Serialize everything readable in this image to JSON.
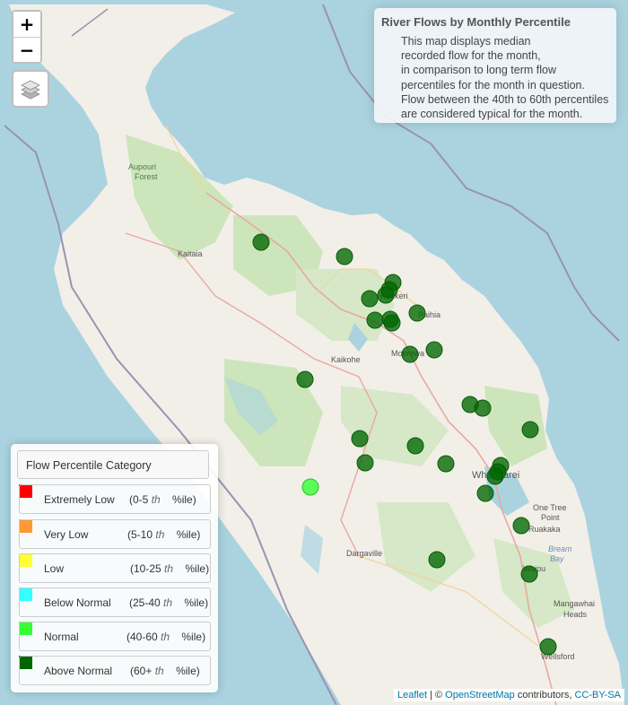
{
  "zoom": {
    "in_label": "+",
    "out_label": "−"
  },
  "layers_button": {
    "icon": "layers-icon"
  },
  "info": {
    "title": "River Flows by Monthly Percentile",
    "description_lines": [
      "This map displays median",
      "recorded flow for the month,",
      "in comparison to long term flow",
      "percentiles for the month in question.",
      "Flow between the 40th to 60th percentiles",
      "are considered typical for the month."
    ]
  },
  "legend": {
    "title": "Flow Percentile Category",
    "items": [
      {
        "name": "Extremely Low",
        "range_pre": "(0-5",
        "range_th": "th",
        "range_post": "%ile)",
        "color": "#ff0000"
      },
      {
        "name": "Very Low",
        "range_pre": "(5-10",
        "range_th": "th",
        "range_post": "%ile)",
        "color": "#ff9933"
      },
      {
        "name": "Low",
        "range_pre": "(10-25",
        "range_th": "th",
        "range_post": "%ile)",
        "color": "#ffff33"
      },
      {
        "name": "Below Normal",
        "range_pre": "(25-40",
        "range_th": "th",
        "range_post": "%ile)",
        "color": "#33ffff"
      },
      {
        "name": "Normal",
        "range_pre": "(40-60",
        "range_th": "th",
        "range_post": "%ile)",
        "color": "#33ff33"
      },
      {
        "name": "Above Normal",
        "range_pre": "(60+",
        "range_th": "th",
        "range_post": "%ile)",
        "color": "#006600"
      }
    ]
  },
  "places": [
    {
      "name": "Aupouri",
      "kind": "forest"
    },
    {
      "name": "Forest",
      "kind": "forest"
    },
    {
      "name": "Kaitaia",
      "kind": "town"
    },
    {
      "name": "Kerikeri",
      "kind": "town"
    },
    {
      "name": "Paihia",
      "kind": "town"
    },
    {
      "name": "Moerewa",
      "kind": "town"
    },
    {
      "name": "Kaikohe",
      "kind": "town"
    },
    {
      "name": "Whangarei",
      "kind": "town"
    },
    {
      "name": "One Tree",
      "kind": "town"
    },
    {
      "name": "Point",
      "kind": "town"
    },
    {
      "name": "Ruakaka",
      "kind": "town"
    },
    {
      "name": "Bream",
      "kind": "sea"
    },
    {
      "name": "Bay",
      "kind": "sea"
    },
    {
      "name": "Waipu",
      "kind": "town"
    },
    {
      "name": "Mangawhai",
      "kind": "town"
    },
    {
      "name": "Heads",
      "kind": "town"
    },
    {
      "name": "Wellsford",
      "kind": "town"
    },
    {
      "name": "Dargaville",
      "kind": "town"
    }
  ],
  "stations": {
    "above_normal_count": 28,
    "normal_count": 1
  },
  "attribution": {
    "leaflet": "Leaflet",
    "sep": " | © ",
    "osm": "OpenStreetMap",
    "contributors": " contributors, ",
    "license": "CC-BY-SA"
  }
}
